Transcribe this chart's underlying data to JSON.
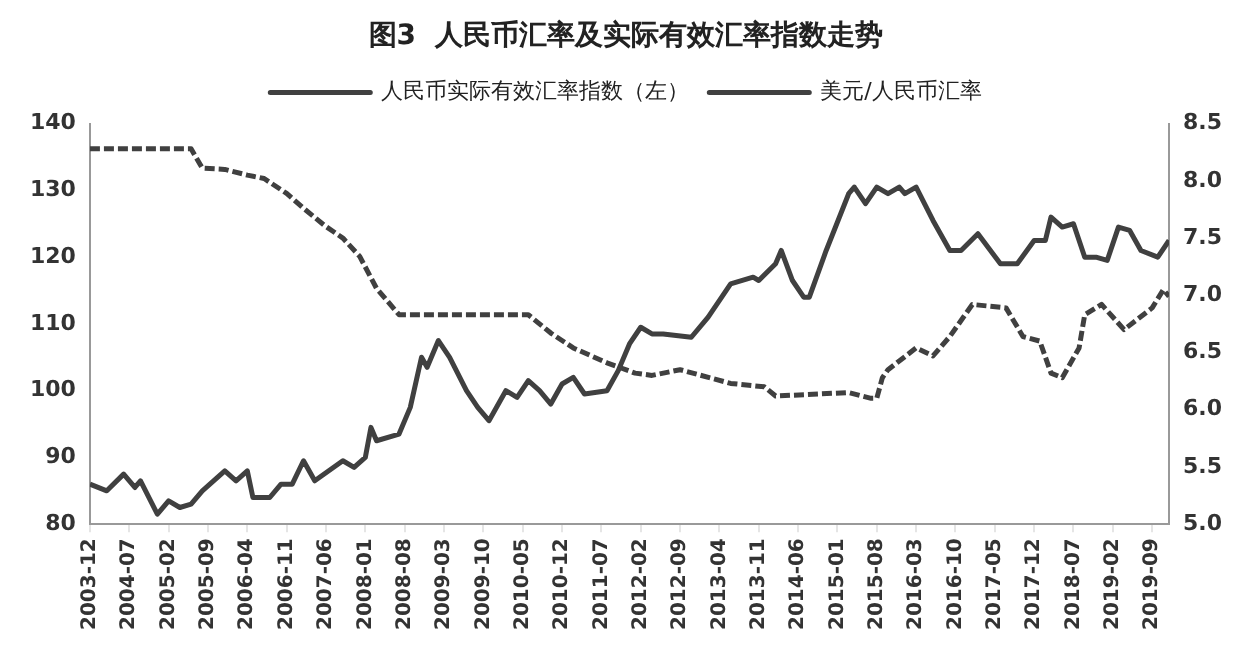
{
  "chart_data": {
    "type": "line",
    "title": "图3  人民币汇率及实际有效汇率指数走势",
    "xlim": [
      "2003-12",
      "2019-12"
    ],
    "xticks": [
      "2003-12",
      "2004-07",
      "2005-02",
      "2005-09",
      "2006-04",
      "2006-11",
      "2007-06",
      "2008-01",
      "2008-08",
      "2009-03",
      "2009-10",
      "2010-05",
      "2010-12",
      "2011-07",
      "2012-02",
      "2012-09",
      "2013-04",
      "2013-11",
      "2014-06",
      "2015-01",
      "2015-08",
      "2016-03",
      "2016-10",
      "2017-05",
      "2017-12",
      "2018-07",
      "2019-02",
      "2019-09"
    ],
    "ylim": [
      80,
      140
    ],
    "yticks": [
      80,
      90,
      100,
      110,
      120,
      130,
      140
    ],
    "y2lim": [
      5,
      8.5
    ],
    "y2ticks": [
      {
        "value": 5,
        "label": "5.0"
      },
      5.5,
      {
        "value": 6,
        "label": "6.0"
      },
      6.5,
      {
        "value": 7,
        "label": "7.0"
      },
      7.5,
      {
        "value": 8,
        "label": "8.0"
      },
      8.5
    ],
    "grid": false,
    "legend": "top",
    "marker": "none",
    "series": [
      {
        "name": "人民币实际有效汇率指数（左）",
        "color": "#404040",
        "line_style": "solid",
        "x": [
          "2003-12",
          "2004-03",
          "2004-06",
          "2004-08",
          "2004-09",
          "2004-12",
          "2005-02",
          "2005-04",
          "2005-06",
          "2005-08",
          "2005-12",
          "2006-02",
          "2006-04",
          "2006-05",
          "2006-08",
          "2006-10",
          "2006-12",
          "2007-02",
          "2007-04",
          "2007-09",
          "2007-11",
          "2008-01",
          "2008-02",
          "2008-03",
          "2008-07",
          "2008-09",
          "2008-11",
          "2008-12",
          "2009-02",
          "2009-04",
          "2009-07",
          "2009-09",
          "2009-11",
          "2010-02",
          "2010-04",
          "2010-06",
          "2010-08",
          "2010-10",
          "2010-12",
          "2011-02",
          "2011-04",
          "2011-08",
          "2011-10",
          "2011-12",
          "2012-02",
          "2012-04",
          "2012-06",
          "2012-11",
          "2013-02",
          "2013-06",
          "2013-10",
          "2013-11",
          "2014-02",
          "2014-03",
          "2014-05",
          "2014-07",
          "2014-08",
          "2014-11",
          "2015-03",
          "2015-04",
          "2015-06",
          "2015-08",
          "2015-10",
          "2015-12",
          "2016-01",
          "2016-03",
          "2016-06",
          "2016-09",
          "2016-11",
          "2017-02",
          "2017-06",
          "2017-09",
          "2017-12",
          "2018-02",
          "2018-03",
          "2018-05",
          "2018-07",
          "2018-09",
          "2018-11",
          "2019-01",
          "2019-03",
          "2019-05",
          "2019-07",
          "2019-10",
          "2019-12"
        ],
        "values": [
          86,
          85,
          87.5,
          85.5,
          86.5,
          81.5,
          83.5,
          82.5,
          83,
          85,
          88,
          86.5,
          88,
          84,
          84,
          86,
          86,
          89.5,
          86.5,
          89.5,
          88.5,
          90,
          94.5,
          92.5,
          93.5,
          97.5,
          105,
          103.5,
          107.5,
          105,
          100,
          97.5,
          95.5,
          100,
          99,
          101.5,
          100,
          98,
          101,
          102,
          99.5,
          100,
          103,
          107,
          109.5,
          108.5,
          108.5,
          108,
          111,
          116,
          117,
          116.5,
          119,
          121,
          116.5,
          114,
          114,
          121,
          129.5,
          130.5,
          128,
          130.5,
          129.5,
          130.5,
          129.5,
          130.5,
          125.5,
          121,
          121,
          123.5,
          119,
          119,
          122.5,
          122.5,
          126,
          124.5,
          125,
          120,
          120,
          119.5,
          124.5,
          124,
          121,
          120,
          122.5
        ]
      },
      {
        "name": "美元/人民币汇率",
        "color": "#404040",
        "line_style": "dashed",
        "axis": "y2",
        "x": [
          "2003-12",
          "2005-06",
          "2005-08",
          "2005-12",
          "2006-04",
          "2006-07",
          "2006-11",
          "2007-02",
          "2007-06",
          "2007-09",
          "2007-12",
          "2008-03",
          "2008-07",
          "2010-06",
          "2010-10",
          "2011-02",
          "2011-08",
          "2012-01",
          "2012-04",
          "2012-09",
          "2013-06",
          "2013-12",
          "2014-02",
          "2015-03",
          "2015-07",
          "2015-08",
          "2015-09",
          "2015-10",
          "2016-03",
          "2016-06",
          "2016-09",
          "2017-01",
          "2017-07",
          "2017-10",
          "2018-01",
          "2018-03",
          "2018-05",
          "2018-08",
          "2018-09",
          "2018-12",
          "2019-04",
          "2019-09",
          "2019-11",
          "2019-12"
        ],
        "values": [
          8.28,
          8.28,
          8.11,
          8.1,
          8.05,
          8.02,
          7.89,
          7.76,
          7.6,
          7.5,
          7.34,
          7.06,
          6.83,
          6.83,
          6.67,
          6.54,
          6.41,
          6.32,
          6.3,
          6.35,
          6.23,
          6.2,
          6.12,
          6.15,
          6.1,
          6.1,
          6.28,
          6.35,
          6.54,
          6.47,
          6.64,
          6.92,
          6.89,
          6.64,
          6.6,
          6.32,
          6.28,
          6.54,
          6.83,
          6.92,
          6.7,
          6.89,
          7.05,
          6.99
        ]
      }
    ]
  }
}
